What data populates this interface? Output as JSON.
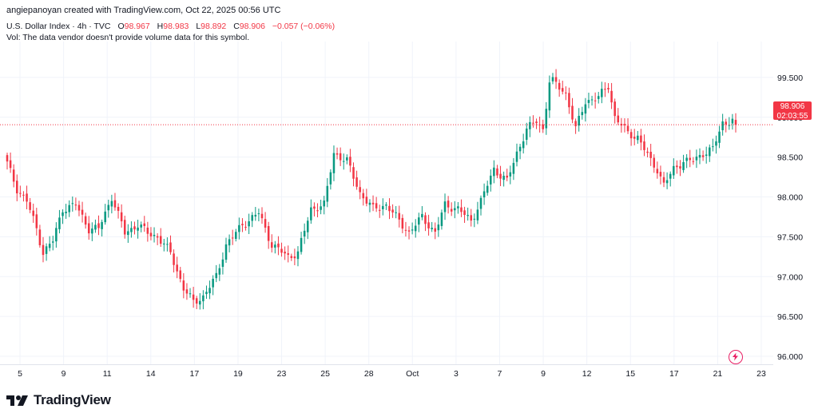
{
  "header": {
    "author_line": "angiepanoyan created with TradingView.com, Oct 22, 2025 00:56 UTC"
  },
  "legend": {
    "symbol": "U.S. Dollar Index · 4h · TVC",
    "open_label": "O",
    "open": "98.967",
    "high_label": "H",
    "high": "98.983",
    "low_label": "L",
    "low": "98.892",
    "close_label": "C",
    "close": "98.906",
    "change": "−0.057 (−0.06%)",
    "volume_note": "Vol: The data vendor doesn't provide volume data for this symbol."
  },
  "price_tag": {
    "price": "98.906",
    "countdown": "02:03:55"
  },
  "branding": {
    "logo_text": "TradingView"
  },
  "colors": {
    "up": "#089981",
    "down": "#f23645",
    "grid": "#f0f3fa",
    "axis_text": "#131722"
  },
  "chart_data": {
    "type": "candlestick",
    "title": "U.S. Dollar Index · 4h · TVC",
    "ylim": [
      95.9,
      99.85
    ],
    "y_ticks": [
      "96.000",
      "96.500",
      "97.000",
      "97.500",
      "98.000",
      "98.500",
      "99.000",
      "99.500"
    ],
    "x_tick_labels": [
      "5",
      "9",
      "11",
      "14",
      "17",
      "19",
      "23",
      "25",
      "28",
      "Oct",
      "3",
      "7",
      "9",
      "12",
      "15",
      "17",
      "21",
      "23"
    ],
    "last_price": 98.906,
    "grid": true,
    "anchors": [
      [
        0,
        98.42
      ],
      [
        3,
        98.1
      ],
      [
        6,
        97.95
      ],
      [
        9,
        97.6
      ],
      [
        11,
        97.3
      ],
      [
        14,
        97.45
      ],
      [
        17,
        97.85
      ],
      [
        21,
        97.9
      ],
      [
        25,
        97.6
      ],
      [
        28,
        97.6
      ],
      [
        32,
        98.0
      ],
      [
        36,
        97.55
      ],
      [
        40,
        97.65
      ],
      [
        43,
        97.55
      ],
      [
        46,
        97.5
      ],
      [
        50,
        97.3
      ],
      [
        54,
        96.85
      ],
      [
        57,
        96.68
      ],
      [
        60,
        96.75
      ],
      [
        64,
        97.0
      ],
      [
        67,
        97.4
      ],
      [
        72,
        97.65
      ],
      [
        77,
        97.8
      ],
      [
        81,
        97.4
      ],
      [
        86,
        97.25
      ],
      [
        89,
        97.3
      ],
      [
        93,
        97.85
      ],
      [
        97,
        97.9
      ],
      [
        100,
        98.55
      ],
      [
        104,
        98.45
      ],
      [
        108,
        98.05
      ],
      [
        112,
        97.85
      ],
      [
        116,
        97.9
      ],
      [
        120,
        97.7
      ],
      [
        123,
        97.55
      ],
      [
        127,
        97.75
      ],
      [
        131,
        97.55
      ],
      [
        134,
        97.9
      ],
      [
        138,
        97.85
      ],
      [
        142,
        97.7
      ],
      [
        145,
        97.95
      ],
      [
        149,
        98.35
      ],
      [
        153,
        98.2
      ],
      [
        156,
        98.55
      ],
      [
        159,
        98.85
      ],
      [
        162,
        98.95
      ],
      [
        164,
        98.85
      ],
      [
        166,
        99.45
      ],
      [
        167,
        99.45
      ],
      [
        171,
        99.3
      ],
      [
        174,
        98.85
      ],
      [
        177,
        99.2
      ],
      [
        181,
        99.25
      ],
      [
        184,
        99.4
      ],
      [
        186,
        99.0
      ],
      [
        190,
        98.8
      ],
      [
        193,
        98.75
      ],
      [
        197,
        98.45
      ],
      [
        199,
        98.35
      ],
      [
        201,
        98.15
      ],
      [
        204,
        98.35
      ],
      [
        207,
        98.45
      ],
      [
        210,
        98.45
      ],
      [
        213,
        98.55
      ],
      [
        216,
        98.6
      ],
      [
        219,
        98.93
      ],
      [
        222,
        98.96
      ],
      [
        223,
        98.906
      ]
    ]
  }
}
